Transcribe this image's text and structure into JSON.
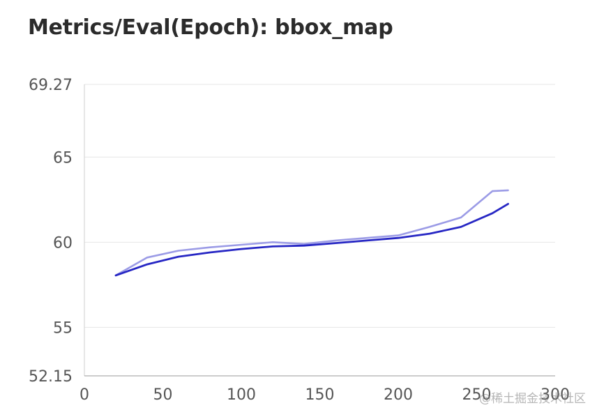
{
  "chart_data": {
    "type": "line",
    "title": "Metrics/Eval(Epoch): bbox_map",
    "xlabel": "",
    "ylabel": "",
    "xlim": [
      0,
      300
    ],
    "ylim": [
      52.15,
      69.27
    ],
    "x_ticks": [
      "0",
      "50",
      "100",
      "150",
      "200",
      "250",
      "300"
    ],
    "y_ticks": [
      "69.27",
      "65",
      "60",
      "55",
      "52.15"
    ],
    "grid": true,
    "legend": "none",
    "series": [
      {
        "color": "#9b9be6",
        "x": [
          20,
          40,
          60,
          80,
          100,
          120,
          140,
          160,
          180,
          200,
          220,
          240,
          260,
          270
        ],
        "y": [
          58.05,
          59.1,
          59.5,
          59.7,
          59.85,
          60.0,
          59.9,
          60.1,
          60.25,
          60.4,
          60.9,
          61.45,
          63.0,
          63.05
        ]
      },
      {
        "color": "#2727c4",
        "x": [
          20,
          40,
          60,
          80,
          100,
          120,
          140,
          160,
          180,
          200,
          220,
          240,
          260,
          270
        ],
        "y": [
          58.05,
          58.7,
          59.15,
          59.4,
          59.6,
          59.75,
          59.8,
          59.95,
          60.1,
          60.25,
          60.5,
          60.9,
          61.7,
          62.25
        ]
      }
    ]
  },
  "watermark": "@稀土掘金技术社区"
}
